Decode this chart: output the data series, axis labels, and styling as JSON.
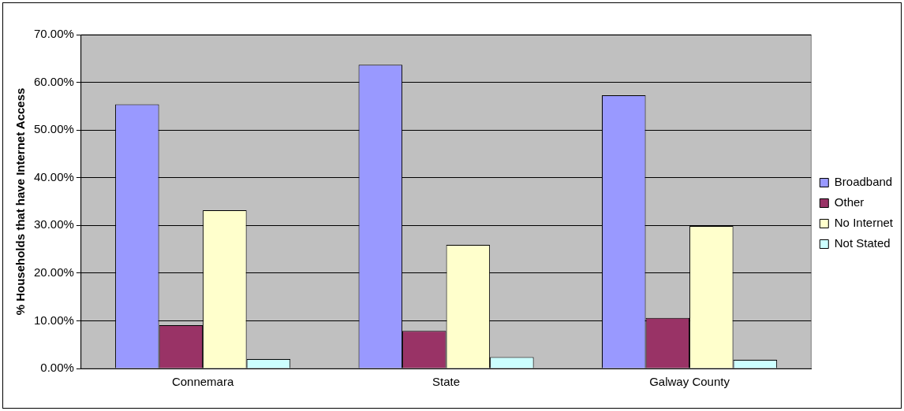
{
  "chart_data": {
    "type": "bar",
    "ylabel": "% Households that have Internet Access",
    "categories": [
      "Connemara",
      "State",
      "Galway County"
    ],
    "series": [
      {
        "name": "Broadband",
        "color": "#9999ff",
        "values": [
          55.4,
          63.7,
          57.3
        ]
      },
      {
        "name": "Other",
        "color": "#993366",
        "values": [
          9.1,
          7.9,
          10.6
        ]
      },
      {
        "name": "No Internet",
        "color": "#ffffcc",
        "values": [
          33.2,
          25.9,
          29.9
        ]
      },
      {
        "name": "Not Stated",
        "color": "#ccffff",
        "values": [
          2.0,
          2.4,
          1.8
        ]
      }
    ],
    "ylim": [
      0,
      70
    ],
    "yticks": [
      {
        "value": 0,
        "label": "0.00%"
      },
      {
        "value": 10,
        "label": "10.00%"
      },
      {
        "value": 20,
        "label": "20.00%"
      },
      {
        "value": 30,
        "label": "30.00%"
      },
      {
        "value": 40,
        "label": "40.00%"
      },
      {
        "value": 50,
        "label": "50.00%"
      },
      {
        "value": 60,
        "label": "60.00%"
      },
      {
        "value": 70,
        "label": "70.00%"
      }
    ],
    "grid": "y",
    "legend": "right"
  }
}
